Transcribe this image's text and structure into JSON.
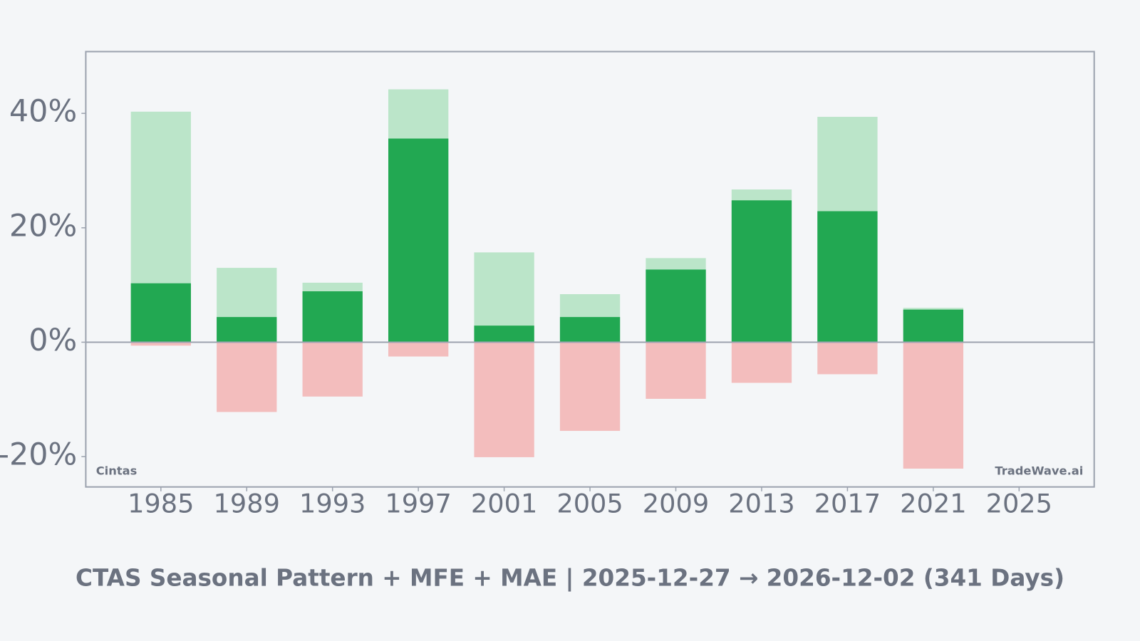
{
  "chart_data": {
    "type": "bar",
    "title": "CTAS Seasonal Pattern + MFE + MAE | 2025-12-27 → 2026-12-02 (341 Days)",
    "left_note": "Cintas",
    "right_note": "TradeWave.ai",
    "x": [
      1985,
      1989,
      1993,
      1997,
      2001,
      2005,
      2009,
      2013,
      2017,
      2021
    ],
    "series": [
      {
        "color": "#bbe5c9",
        "values": [
          40.3,
          13.0,
          10.4,
          44.2,
          15.7,
          8.4,
          14.7,
          26.7,
          39.4,
          6.0
        ]
      },
      {
        "color": "#22a852",
        "values": [
          10.3,
          4.4,
          8.9,
          35.6,
          2.9,
          4.4,
          12.7,
          24.8,
          22.9,
          5.7
        ]
      },
      {
        "color": "#f3bdbd",
        "values": [
          -0.6,
          -12.2,
          -9.5,
          -2.5,
          -20.1,
          -15.5,
          -9.9,
          -7.1,
          -5.6,
          -22.1
        ]
      }
    ],
    "xlim": [
      1981.5,
      2028.5
    ],
    "xticks": [
      1985,
      1989,
      1993,
      1997,
      2001,
      2005,
      2009,
      2013,
      2017,
      2021,
      2025
    ],
    "ylim": [
      -25.3,
      50.8
    ],
    "yticks": [
      {
        "value": -20,
        "label": "-20%"
      },
      {
        "value": 0,
        "label": "0%"
      },
      {
        "value": 20,
        "label": "20%"
      },
      {
        "value": 40,
        "label": "40%"
      }
    ],
    "grid": false
  }
}
